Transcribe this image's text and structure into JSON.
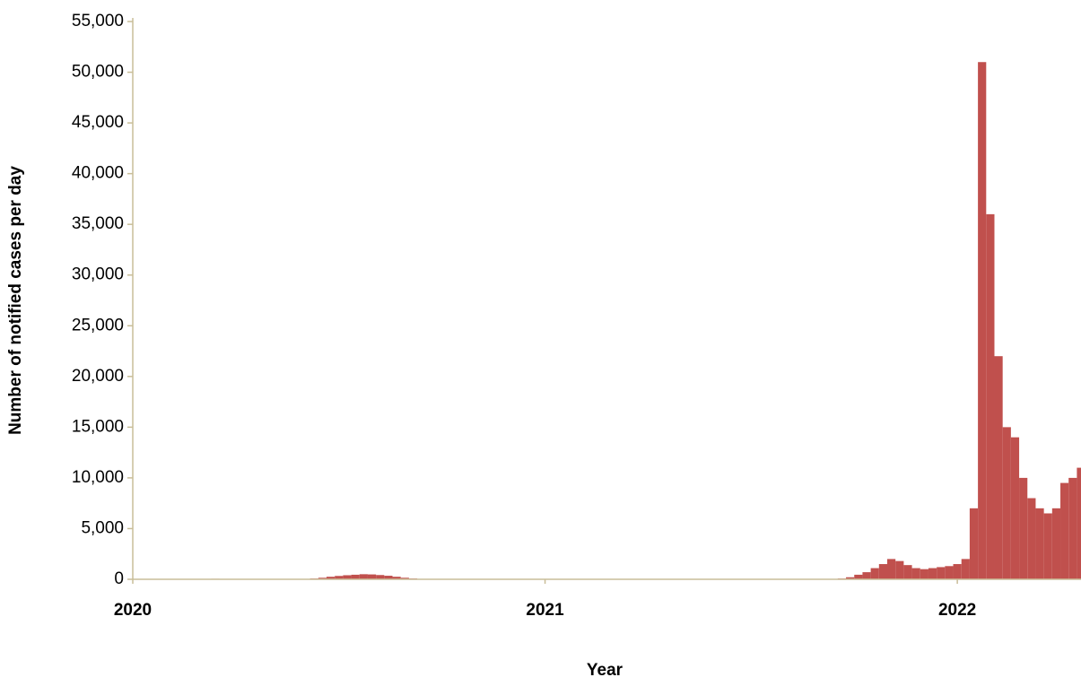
{
  "chart_data": {
    "type": "bar",
    "x_label": "Year",
    "y_label": "Number of notified cases per day",
    "color": "#c0504d",
    "x": [
      2020,
      2020.02,
      2020.04,
      2020.06,
      2020.08,
      2020.1,
      2020.12,
      2020.14,
      2020.16,
      2020.18,
      2020.2,
      2020.22,
      2020.24,
      2020.26,
      2020.28,
      2020.3,
      2020.32,
      2020.34,
      2020.36,
      2020.38,
      2020.4,
      2020.42,
      2020.44,
      2020.46,
      2020.48,
      2020.5,
      2020.52,
      2020.54,
      2020.56,
      2020.58,
      2020.6,
      2020.62,
      2020.64,
      2020.66,
      2020.68,
      2020.7,
      2020.72,
      2020.74,
      2020.76,
      2020.78,
      2020.8,
      2020.82,
      2020.84,
      2020.86,
      2020.88,
      2020.9,
      2020.92,
      2020.94,
      2020.96,
      2020.98,
      2021,
      2021.02,
      2021.04,
      2021.06,
      2021.08,
      2021.1,
      2021.12,
      2021.14,
      2021.16,
      2021.18,
      2021.2,
      2021.22,
      2021.24,
      2021.26,
      2021.28,
      2021.3,
      2021.32,
      2021.34,
      2021.36,
      2021.38,
      2021.4,
      2021.42,
      2021.44,
      2021.46,
      2021.48,
      2021.5,
      2021.52,
      2021.54,
      2021.56,
      2021.58,
      2021.6,
      2021.62,
      2021.64,
      2021.66,
      2021.68,
      2021.7,
      2021.72,
      2021.74,
      2021.76,
      2021.78,
      2021.8,
      2021.82,
      2021.84,
      2021.86,
      2021.88,
      2021.9,
      2021.92,
      2021.94,
      2021.96,
      2021.98,
      2022,
      2022.02,
      2022.04,
      2022.06,
      2022.08,
      2022.1,
      2022.12,
      2022.14,
      2022.16,
      2022.18,
      2022.2,
      2022.22,
      2022.24,
      2022.26,
      2022.28,
      2022.3
    ],
    "values": [
      0,
      0,
      0,
      0,
      0,
      0,
      0,
      0,
      20,
      40,
      50,
      40,
      20,
      10,
      0,
      0,
      0,
      0,
      0,
      0,
      10,
      30,
      80,
      150,
      250,
      330,
      400,
      450,
      500,
      480,
      420,
      350,
      250,
      150,
      80,
      40,
      20,
      10,
      5,
      0,
      0,
      0,
      0,
      0,
      0,
      0,
      0,
      0,
      0,
      0,
      0,
      0,
      0,
      0,
      0,
      0,
      0,
      0,
      0,
      0,
      0,
      0,
      0,
      0,
      0,
      0,
      0,
      0,
      0,
      0,
      0,
      0,
      0,
      0,
      0,
      0,
      0,
      0,
      0,
      0,
      0,
      0,
      0,
      0,
      0,
      20,
      80,
      200,
      450,
      700,
      1100,
      1500,
      2000,
      1800,
      1400,
      1100,
      1000,
      1100,
      1200,
      1300,
      1500,
      2000,
      7000,
      51000,
      36000,
      22000,
      15000,
      14000,
      10000,
      8000,
      7000,
      6500,
      7000,
      9500,
      10000,
      11000
    ],
    "xlim": [
      2020,
      2022.3
    ],
    "xticks": [
      2020,
      2021,
      2022
    ],
    "ylim": [
      0,
      55000
    ],
    "yticks": [
      0,
      {
        "value": 5000,
        "label": "5,000"
      },
      {
        "value": 10000,
        "label": "10,000"
      },
      {
        "value": 15000,
        "label": "15,000"
      },
      {
        "value": 20000,
        "label": "20,000"
      },
      {
        "value": 25000,
        "label": "25,000"
      },
      {
        "value": 30000,
        "label": "30,000"
      },
      {
        "value": 35000,
        "label": "35,000"
      },
      {
        "value": 40000,
        "label": "40,000"
      },
      {
        "value": 45000,
        "label": "45,000"
      },
      {
        "value": 50000,
        "label": "50,000"
      },
      {
        "value": 55000,
        "label": "55,000"
      }
    ]
  }
}
